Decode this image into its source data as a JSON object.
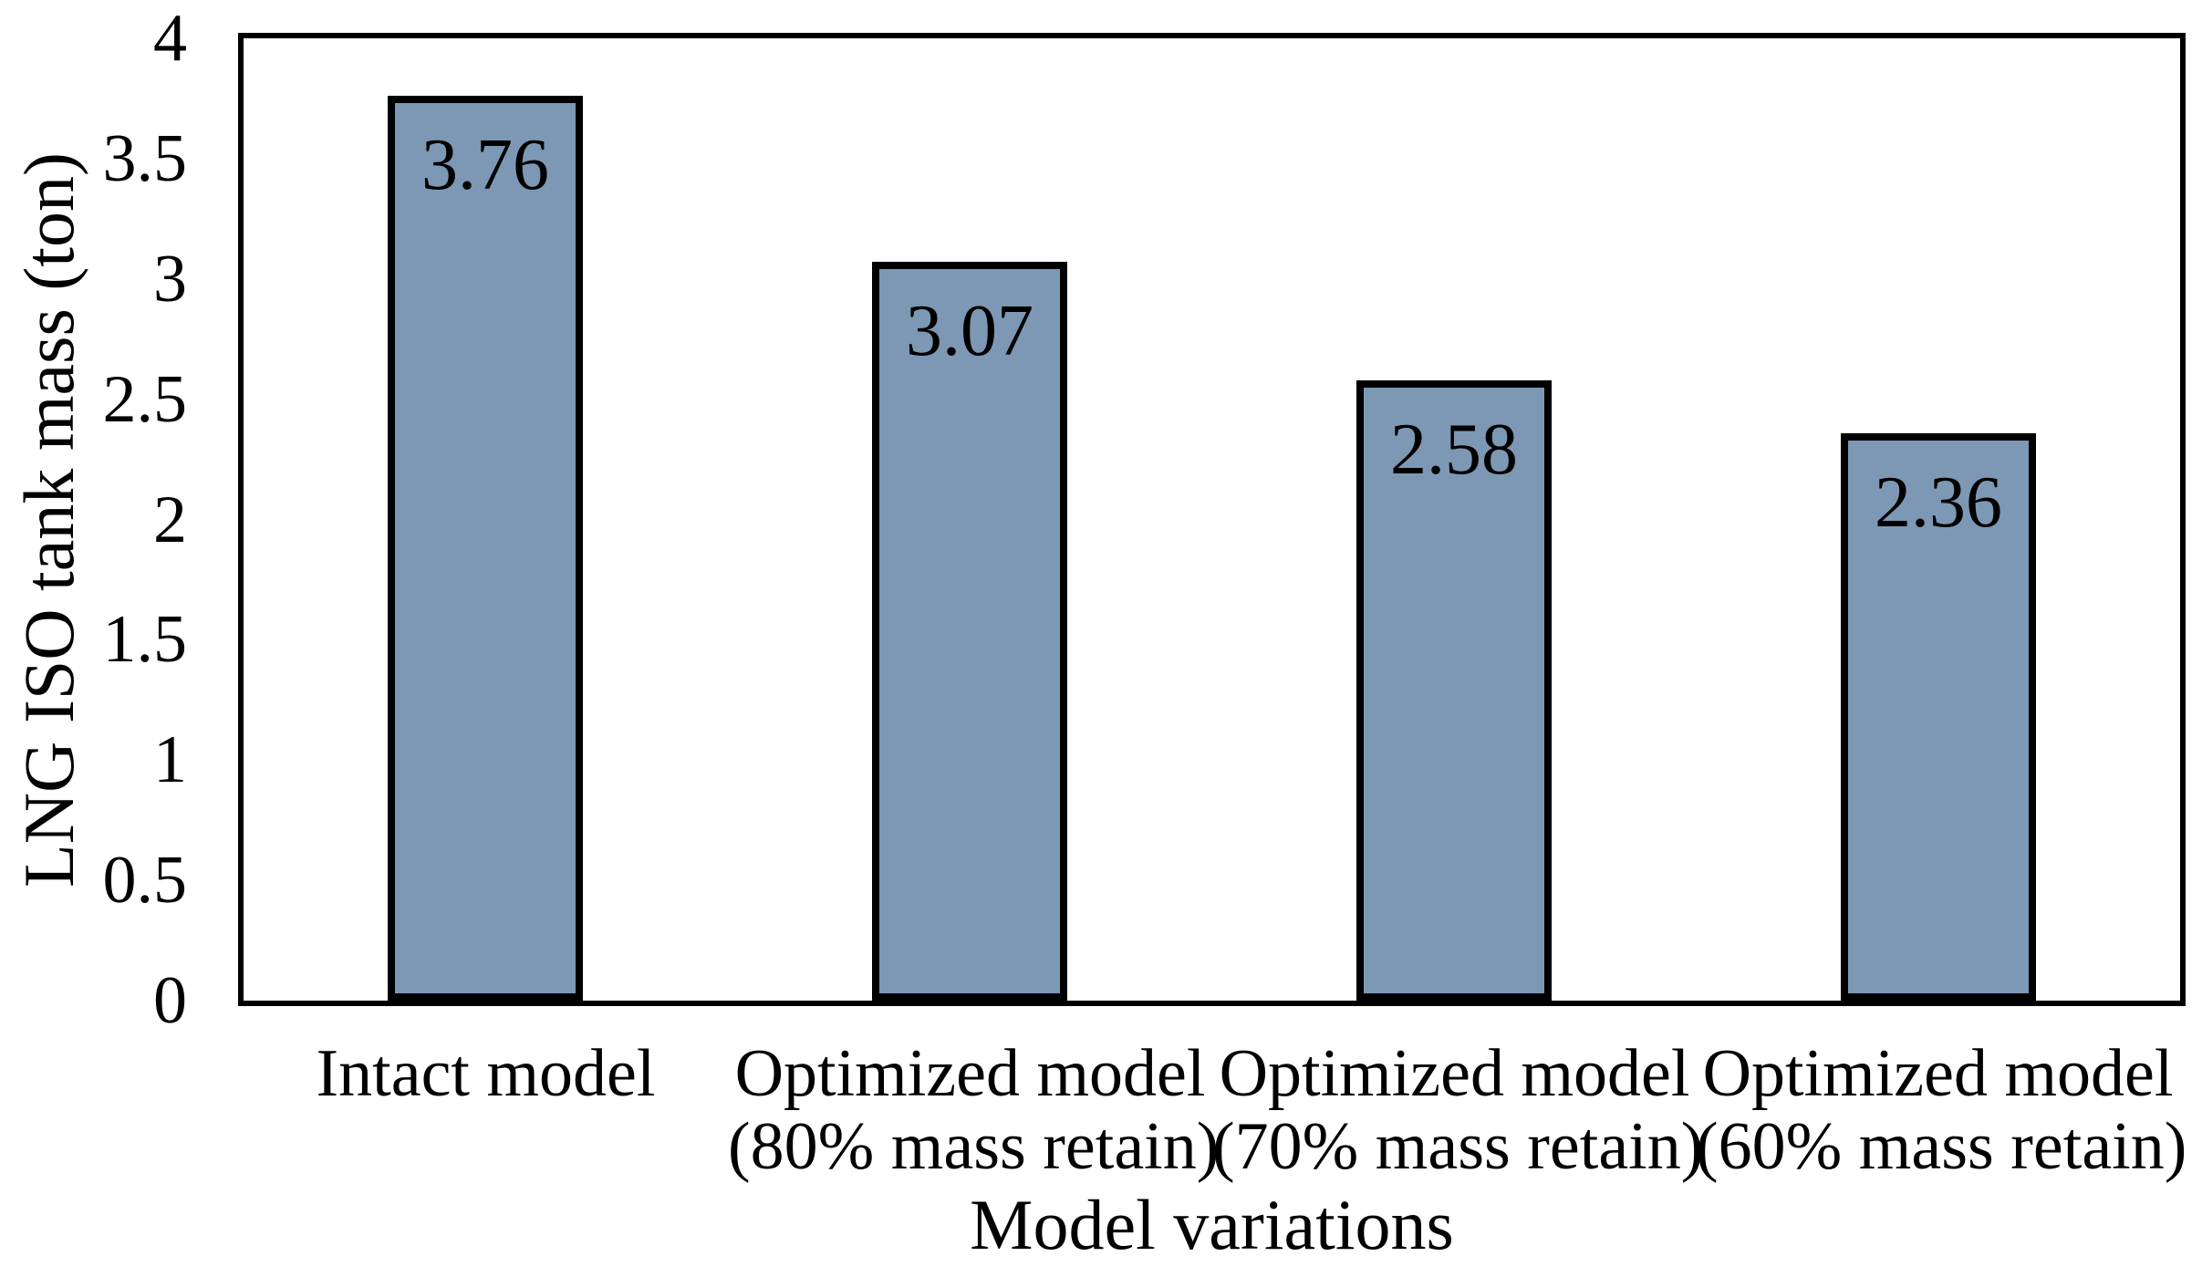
{
  "chart_data": {
    "type": "bar",
    "title": "",
    "xlabel": "Model variations",
    "ylabel": "LNG ISO tank mass (ton)",
    "categories": [
      {
        "lines": [
          "Intact model"
        ]
      },
      {
        "lines": [
          "Optimized model",
          "(80% mass retain)"
        ]
      },
      {
        "lines": [
          "Optimized model",
          "(70% mass retain)"
        ]
      },
      {
        "lines": [
          "Optimized model",
          "(60% mass retain)"
        ]
      }
    ],
    "values": [
      3.76,
      3.07,
      2.58,
      2.36
    ],
    "data_labels": [
      "3.76",
      "3.07",
      "2.58",
      "2.36"
    ],
    "ylim": [
      0,
      4
    ],
    "ytick_step": 0.5,
    "ytick_labels": [
      "0",
      "0.5",
      "1",
      "1.5",
      "2",
      "2.5",
      "3",
      "3.5",
      "4"
    ],
    "grid": false,
    "legend": "none",
    "colors": {
      "bar_fill": "#7D98B4",
      "bar_border": "#000000",
      "axis": "#000000",
      "text": "#000000",
      "background": "#FFFFFF"
    }
  }
}
